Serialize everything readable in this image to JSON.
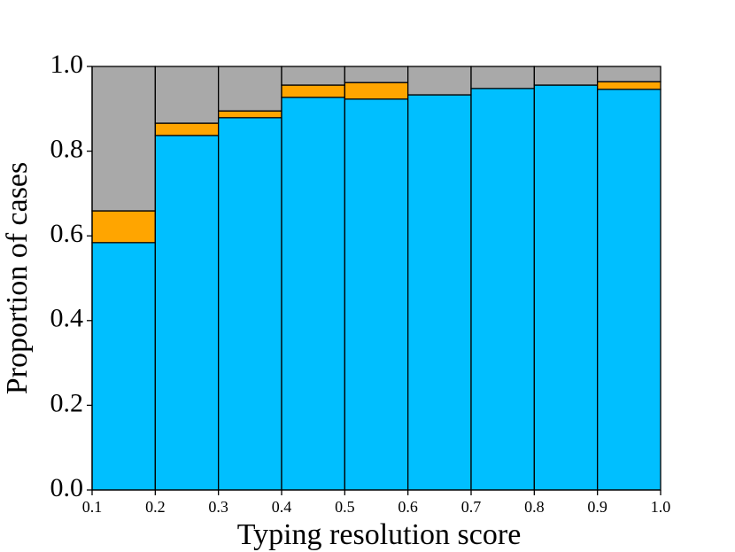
{
  "chart_data": {
    "type": "histogram",
    "x_label": "Typing resolution score",
    "y_label": "Proportion of cases",
    "bins": [
      0.1,
      0.2,
      0.3,
      0.4,
      0.5,
      0.6,
      0.7,
      0.8,
      0.9,
      1.0
    ],
    "series": [
      {
        "color": "#00bfff",
        "values": [
          0.584,
          0.837,
          0.879,
          0.927,
          0.923,
          0.933,
          0.948,
          0.956,
          0.946
        ]
      },
      {
        "color": "#ffa500",
        "values": [
          0.075,
          0.029,
          0.016,
          0.029,
          0.039,
          0,
          0,
          0,
          0.018
        ]
      },
      {
        "color": "#a9a9a9",
        "values": [
          0.341,
          0.134,
          0.105,
          0.044,
          0.038,
          0.067,
          0.052,
          0.044,
          0.036
        ]
      }
    ],
    "edge_color": "#000000",
    "xlim": [
      0.1,
      1.0
    ],
    "xticks": [
      0.1,
      0.2,
      0.3,
      0.4,
      0.5,
      0.6,
      0.7,
      0.8,
      0.9,
      {
        "value": 1.0,
        "label": "1.0"
      }
    ],
    "ylim": [
      0,
      1.0
    ],
    "yticks": [
      {
        "value": 0,
        "label": "0.0"
      },
      0.2,
      0.4,
      0.6,
      0.8,
      {
        "value": 1.0,
        "label": "1.0"
      }
    ]
  }
}
